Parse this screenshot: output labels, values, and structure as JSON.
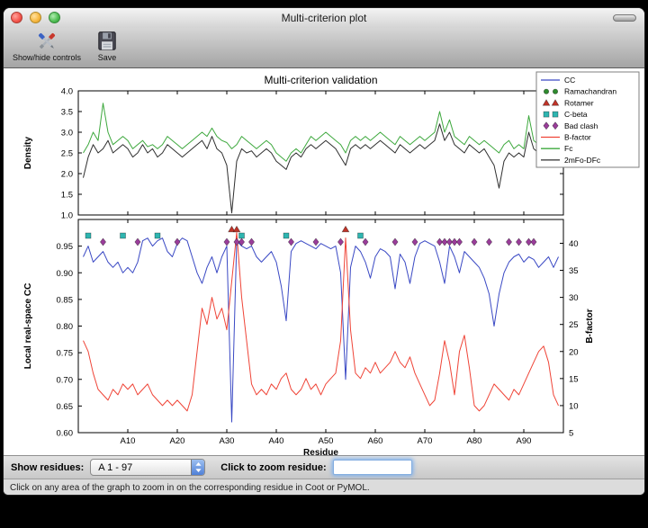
{
  "window": {
    "title": "Multi-criterion plot"
  },
  "toolbar": {
    "show_hide_controls_label": "Show/hide controls",
    "save_label": "Save"
  },
  "controls": {
    "show_residues_label": "Show residues:",
    "residue_range_value": "A  1 - 97",
    "zoom_residue_label": "Click to zoom residue:",
    "zoom_residue_value": ""
  },
  "status_bar": {
    "message": "Click on any area of the graph to zoom in on the corresponding residue in Coot or PyMOL."
  },
  "icons": {
    "toolbar": [
      "tools-icon",
      "save-icon"
    ],
    "combo": "updown-stepper-icon"
  },
  "chart_data": {
    "type": "line",
    "title": "Multi-criterion validation",
    "xlabel": "Residue",
    "x_range": [
      0,
      98
    ],
    "x_tick_values": [
      10,
      20,
      30,
      40,
      50,
      60,
      70,
      80,
      90
    ],
    "x_ticks": [
      "A10",
      "A20",
      "A30",
      "A40",
      "A50",
      "A60",
      "A70",
      "A80",
      "A90"
    ],
    "top_plot": {
      "ylabel": "Density",
      "ylim": [
        1.0,
        4.0
      ],
      "yticks": [
        1.0,
        1.5,
        2.0,
        2.5,
        3.0,
        3.5,
        4.0
      ],
      "grid": false,
      "series": [
        {
          "name": "Fc",
          "color": "#3da83d",
          "values": [
            2.5,
            2.7,
            3.0,
            2.8,
            3.7,
            3.0,
            2.7,
            2.8,
            2.9,
            2.8,
            2.6,
            2.7,
            2.8,
            2.65,
            2.7,
            2.6,
            2.7,
            2.9,
            2.8,
            2.7,
            2.6,
            2.7,
            2.8,
            2.9,
            3.0,
            2.9,
            3.1,
            2.9,
            2.8,
            2.75,
            2.6,
            2.7,
            2.9,
            2.8,
            2.7,
            2.6,
            2.7,
            2.8,
            2.7,
            2.5,
            2.4,
            2.3,
            2.5,
            2.6,
            2.5,
            2.7,
            2.9,
            2.8,
            2.9,
            3.0,
            2.9,
            2.8,
            2.7,
            2.5,
            2.8,
            2.9,
            2.8,
            2.9,
            2.8,
            2.9,
            3.0,
            2.9,
            2.8,
            2.7,
            2.9,
            2.8,
            2.7,
            2.8,
            2.9,
            2.8,
            2.9,
            3.0,
            3.5,
            3.0,
            3.3,
            2.9,
            2.8,
            2.7,
            2.9,
            2.8,
            2.7,
            2.8,
            2.7,
            2.6,
            2.5,
            2.7,
            2.8,
            2.6,
            2.7,
            2.6,
            3.4,
            2.8,
            2.7,
            2.6,
            2.8,
            3.3,
            3.3
          ]
        },
        {
          "name": "2mFo-DFc",
          "color": "#2f2f2f",
          "values": [
            1.9,
            2.4,
            2.7,
            2.5,
            2.6,
            2.8,
            2.5,
            2.6,
            2.7,
            2.6,
            2.4,
            2.5,
            2.7,
            2.5,
            2.6,
            2.4,
            2.5,
            2.7,
            2.6,
            2.5,
            2.4,
            2.5,
            2.6,
            2.7,
            2.8,
            2.6,
            2.9,
            2.6,
            2.5,
            2.2,
            1.05,
            2.3,
            2.6,
            2.5,
            2.55,
            2.4,
            2.5,
            2.6,
            2.5,
            2.3,
            2.2,
            2.1,
            2.4,
            2.5,
            2.4,
            2.6,
            2.7,
            2.6,
            2.7,
            2.8,
            2.7,
            2.6,
            2.4,
            2.2,
            2.6,
            2.7,
            2.6,
            2.7,
            2.6,
            2.7,
            2.8,
            2.7,
            2.6,
            2.5,
            2.7,
            2.6,
            2.5,
            2.6,
            2.7,
            2.6,
            2.7,
            2.8,
            3.2,
            2.8,
            3.0,
            2.7,
            2.6,
            2.5,
            2.7,
            2.6,
            2.5,
            2.6,
            2.4,
            2.2,
            1.65,
            2.3,
            2.5,
            2.4,
            2.5,
            2.4,
            3.0,
            2.6,
            2.5,
            2.4,
            2.6,
            3.0,
            3.1
          ]
        }
      ]
    },
    "bottom_plot": {
      "ylabel_left": "Local real-space CC",
      "ylim_left": [
        0.6,
        1.0
      ],
      "yticks_left": [
        0.6,
        0.65,
        0.7,
        0.75,
        0.8,
        0.85,
        0.9,
        0.95
      ],
      "ylabel_right": "B-factor",
      "ylim_right": [
        5,
        44.4
      ],
      "yticks_right": [
        5,
        10,
        15,
        20,
        25,
        30,
        35,
        40
      ],
      "grid": false,
      "series": [
        {
          "name": "CC",
          "axis": "left",
          "color": "#3a49c4",
          "values": [
            0.93,
            0.95,
            0.92,
            0.93,
            0.94,
            0.92,
            0.91,
            0.92,
            0.9,
            0.91,
            0.9,
            0.92,
            0.96,
            0.965,
            0.95,
            0.96,
            0.965,
            0.94,
            0.93,
            0.955,
            0.965,
            0.96,
            0.93,
            0.9,
            0.88,
            0.91,
            0.93,
            0.9,
            0.93,
            0.95,
            0.62,
            0.96,
            0.95,
            0.945,
            0.95,
            0.93,
            0.92,
            0.93,
            0.94,
            0.92,
            0.875,
            0.81,
            0.94,
            0.955,
            0.96,
            0.955,
            0.95,
            0.945,
            0.955,
            0.95,
            0.945,
            0.95,
            0.9,
            0.7,
            0.91,
            0.95,
            0.94,
            0.92,
            0.89,
            0.93,
            0.945,
            0.94,
            0.93,
            0.87,
            0.935,
            0.92,
            0.88,
            0.93,
            0.955,
            0.96,
            0.955,
            0.95,
            0.92,
            0.88,
            0.95,
            0.93,
            0.9,
            0.94,
            0.93,
            0.92,
            0.91,
            0.89,
            0.86,
            0.8,
            0.86,
            0.9,
            0.92,
            0.93,
            0.935,
            0.92,
            0.93,
            0.925,
            0.91,
            0.92,
            0.93,
            0.91,
            0.93
          ]
        },
        {
          "name": "B-factor",
          "axis": "right",
          "color": "#ef4437",
          "values": [
            22,
            20,
            16,
            13,
            12,
            11,
            13,
            12,
            14,
            13,
            14,
            12,
            13,
            14,
            12,
            11,
            10,
            11,
            10,
            11,
            10,
            9,
            12,
            20,
            28,
            25,
            30,
            26,
            28,
            24,
            33,
            42,
            30,
            22,
            14,
            12,
            13,
            12,
            14,
            13,
            15,
            16,
            13,
            12,
            13,
            15,
            13,
            14,
            12,
            14,
            15,
            16,
            22,
            41,
            24,
            16,
            15,
            17,
            16,
            18,
            16,
            17,
            18,
            20,
            18,
            17,
            19,
            16,
            14,
            12,
            10,
            11,
            16,
            22,
            18,
            12,
            20,
            23,
            17,
            10,
            9,
            10,
            12,
            14,
            13,
            12,
            11,
            13,
            12,
            14,
            16,
            18,
            20,
            21,
            18,
            12,
            10
          ]
        }
      ],
      "markers": [
        {
          "name": "Rotamer",
          "shape": "triangle",
          "color": "#c03328",
          "residues": [
            31,
            32,
            54
          ]
        },
        {
          "name": "C-beta",
          "shape": "square",
          "color": "#2fb5b0",
          "residues": [
            2,
            9,
            16,
            33,
            42,
            57
          ]
        },
        {
          "name": "Bad clash",
          "shape": "diamond",
          "color": "#9a3d9a",
          "residues": [
            5,
            12,
            20,
            30,
            32,
            33,
            35,
            43,
            48,
            53,
            58,
            64,
            68,
            73,
            74,
            75,
            76,
            77,
            80,
            83,
            87,
            89,
            91,
            92
          ]
        }
      ]
    },
    "legend": {
      "position": "upper right",
      "entries": [
        {
          "label": "CC",
          "type": "line",
          "color": "#3a49c4"
        },
        {
          "label": "Ramachandran",
          "type": "circle",
          "color": "#2e8b2e"
        },
        {
          "label": "Rotamer",
          "type": "triangle",
          "color": "#c03328"
        },
        {
          "label": "C-beta",
          "type": "square",
          "color": "#2fb5b0"
        },
        {
          "label": "Bad clash",
          "type": "diamond",
          "color": "#9a3d9a"
        },
        {
          "label": "B-factor",
          "type": "line",
          "color": "#ef4437"
        },
        {
          "label": "Fc",
          "type": "line",
          "color": "#3da83d"
        },
        {
          "label": "2mFo-DFc",
          "type": "line",
          "color": "#2f2f2f"
        }
      ]
    }
  }
}
